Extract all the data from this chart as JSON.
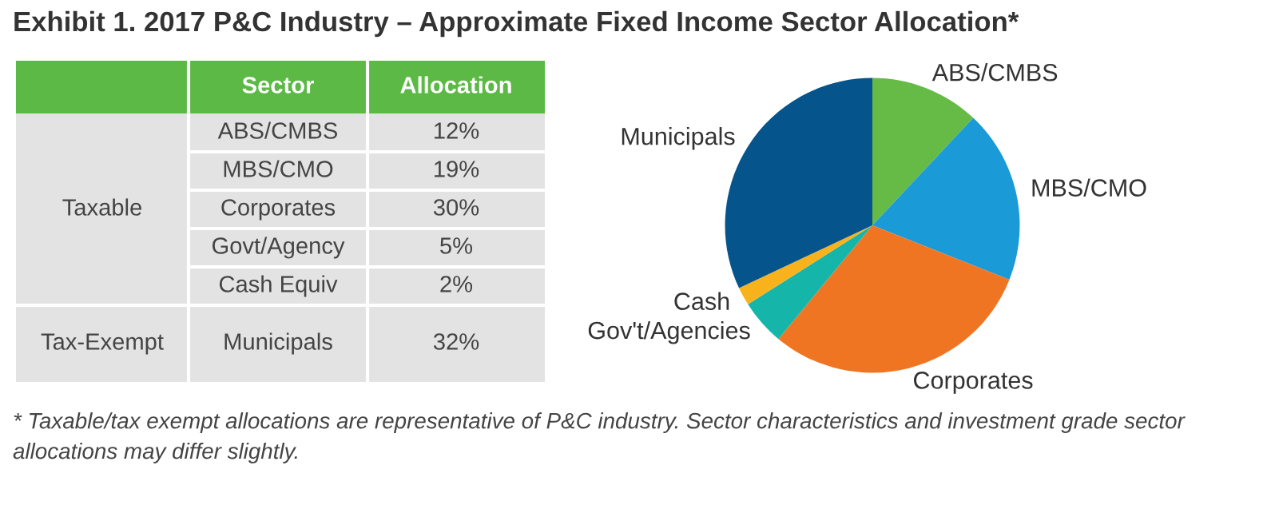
{
  "chart_data": [
    {
      "type": "other",
      "title": "Exhibit 1. 2017 P&C Industry – Approximate Fixed Income Sector Allocation*",
      "categories": [
        "ABS/CMBS",
        "MBS/CMO",
        "Corporates",
        "Govt/Agency",
        "Cash Equiv",
        "Municipals"
      ],
      "value_labels": [
        "12%",
        "19%",
        "30%",
        "5%",
        "2%",
        "32%"
      ],
      "annotations": [
        "Sector",
        "Allocation",
        "Taxable",
        "Tax-Exempt",
        "* Taxable/tax exempt allocations are representative of P&C industry. Sector characteristics and investment grade sector allocations may differ slightly."
      ]
    },
    {
      "type": "pie",
      "categories": [
        "ABS/CMBS",
        "MBS/CMO",
        "Corporates",
        "Gov't/Agencies",
        "Cash",
        "Municipals"
      ],
      "values": [
        12,
        19,
        30,
        5,
        2,
        32
      ],
      "colors": [
        "#66bb46",
        "#1b9ad8",
        "#f07522",
        "#16b5aa",
        "#f8b21c",
        "#05548c"
      ]
    }
  ]
}
